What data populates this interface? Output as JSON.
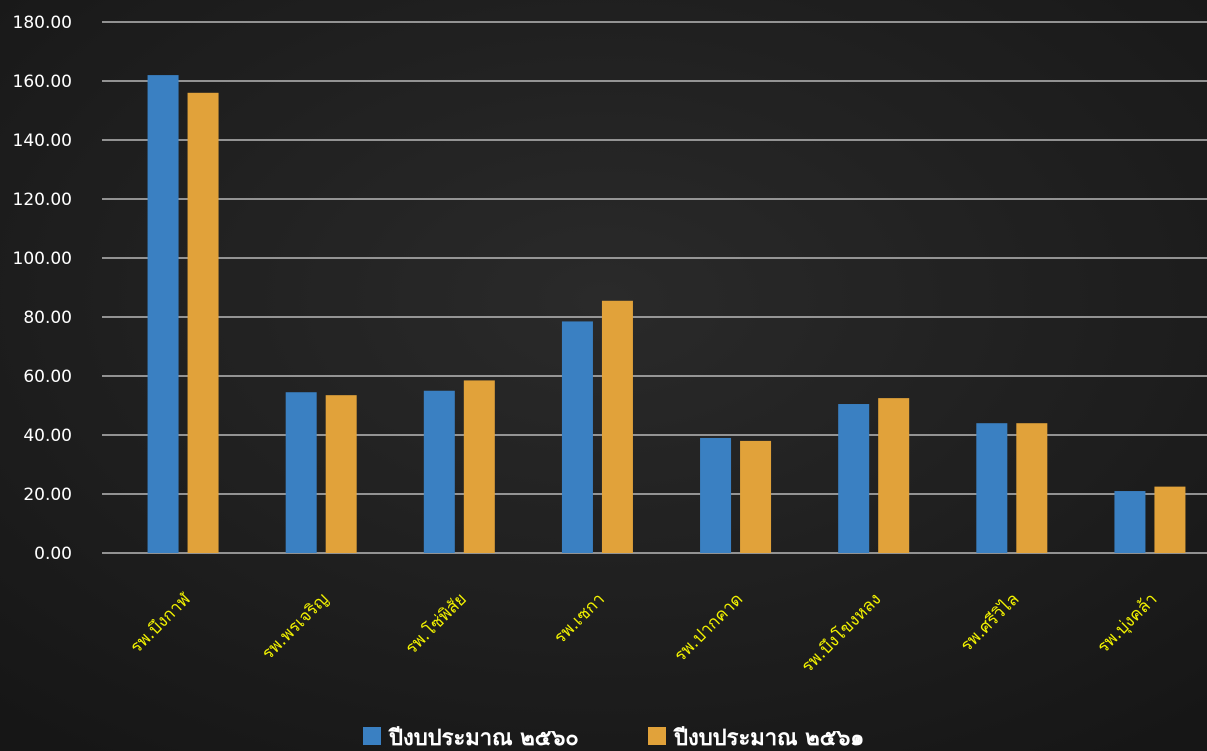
{
  "chart_data": {
    "type": "bar",
    "categories": [
      "รพ.บึงกาฬ",
      "รพ.พรเจริญ",
      "รพ.โซ่พิสัย",
      "รพ.เซกา",
      "รพ.ปากคาด",
      "รพ.บึงโขงหลง",
      "รพ.ศรีวิไล",
      "รพ.บุ่งคล้า"
    ],
    "series": [
      {
        "name": "ปีงบประมาณ ๒๕๖๐",
        "color": "#3a80c2",
        "values": [
          162.0,
          54.5,
          55.0,
          78.5,
          39.0,
          50.5,
          44.0,
          21.0
        ]
      },
      {
        "name": "ปีงบประมาณ ๒๕๖๑",
        "color": "#e1a23a",
        "values": [
          156.0,
          53.5,
          58.5,
          85.5,
          38.0,
          52.5,
          44.0,
          22.5
        ]
      }
    ],
    "ylim": [
      0,
      180
    ],
    "yticks": [
      "0.00",
      "20.00",
      "40.00",
      "60.00",
      "80.00",
      "100.00",
      "120.00",
      "140.00",
      "160.00",
      "180.00"
    ],
    "grid": true,
    "legend_position": "bottom-center",
    "title": "",
    "xlabel": "",
    "ylabel": ""
  },
  "colors": {
    "background": "#1f1f1f",
    "gridline": "#d8d8d8",
    "category_label": "#f2f200",
    "tick_label": "#ffffff"
  }
}
